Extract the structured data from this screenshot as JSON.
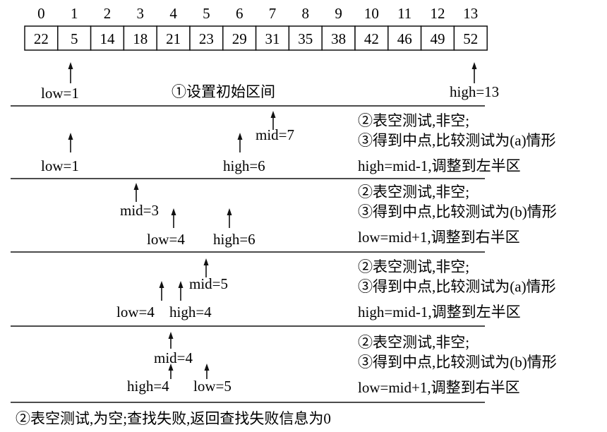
{
  "array": {
    "indices": [
      "0",
      "1",
      "2",
      "3",
      "4",
      "5",
      "6",
      "7",
      "8",
      "9",
      "10",
      "11",
      "12",
      "13"
    ],
    "values": [
      "22",
      "5",
      "14",
      "18",
      "21",
      "23",
      "29",
      "31",
      "35",
      "38",
      "42",
      "46",
      "49",
      "52"
    ]
  },
  "steps": [
    {
      "labels": {
        "low": "low=1",
        "high": "high=13"
      },
      "caption": "①设置初始区间"
    },
    {
      "labels": {
        "mid": "mid=7",
        "low": "low=1",
        "high": "high=6"
      },
      "notes": [
        "②表空测试,非空;",
        "③得到中点,比较测试为(a)情形",
        "high=mid-1,调整到左半区"
      ]
    },
    {
      "labels": {
        "mid": "mid=3",
        "low": "low=4",
        "high": "high=6"
      },
      "notes": [
        "②表空测试,非空;",
        "③得到中点,比较测试为(b)情形",
        "low=mid+1,调整到右半区"
      ]
    },
    {
      "labels": {
        "mid": "mid=5",
        "low": "low=4",
        "high": "high=4"
      },
      "notes": [
        "②表空测试,非空;",
        "③得到中点,比较测试为(a)情形",
        "high=mid-1,调整到左半区"
      ]
    },
    {
      "labels": {
        "mid": "mid=4",
        "high": "high=4",
        "low": "low=5"
      },
      "notes": [
        "②表空测试,非空;",
        "③得到中点,比较测试为(b)情形",
        "low=mid+1,调整到右半区"
      ]
    }
  ],
  "final_note": "②表空测试,为空;查找失败,返回查找失败信息为0"
}
